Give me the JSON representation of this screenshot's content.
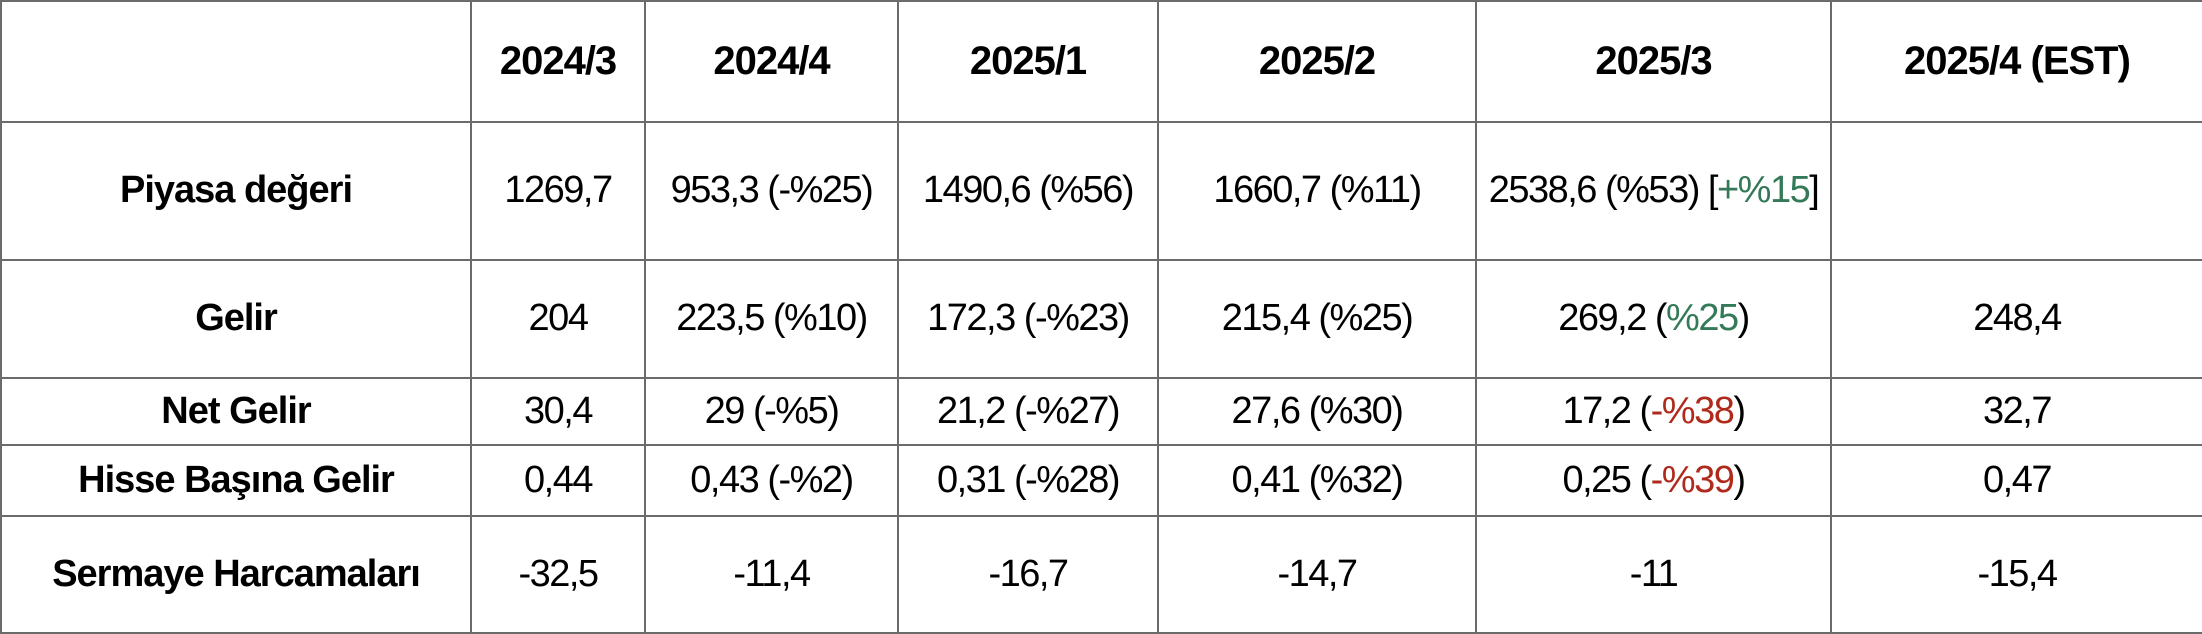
{
  "colors": {
    "green": "#347a58",
    "red": "#b02a1c",
    "text": "#000000",
    "border": "#6b6b6b",
    "background": "#ffffff"
  },
  "table": {
    "columns": [
      "",
      "2024/3",
      "2024/4",
      "2025/1",
      "2025/2",
      "2025/3",
      "2025/4 (EST)"
    ],
    "rows": [
      {
        "label": "Piyasa değeri",
        "cells": [
          [
            {
              "text": "1269,7"
            }
          ],
          [
            {
              "text": "953,3 (-%25)"
            }
          ],
          [
            {
              "text": "1490,6 (%56)"
            }
          ],
          [
            {
              "text": "1660,7 (%11)"
            }
          ],
          [
            {
              "text": "2538,6 (%53) ["
            },
            {
              "text": "+%15",
              "color": "green"
            },
            {
              "text": "]"
            }
          ],
          []
        ]
      },
      {
        "label": "Gelir",
        "cells": [
          [
            {
              "text": "204"
            }
          ],
          [
            {
              "text": "223,5 (%10)"
            }
          ],
          [
            {
              "text": "172,3 (-%23)"
            }
          ],
          [
            {
              "text": "215,4 (%25)"
            }
          ],
          [
            {
              "text": "269,2 ("
            },
            {
              "text": "%25",
              "color": "green"
            },
            {
              "text": ")"
            }
          ],
          [
            {
              "text": "248,4"
            }
          ]
        ]
      },
      {
        "label": "Net Gelir",
        "cells": [
          [
            {
              "text": "30,4"
            }
          ],
          [
            {
              "text": "29 (-%5)"
            }
          ],
          [
            {
              "text": "21,2 (-%27)"
            }
          ],
          [
            {
              "text": "27,6 (%30)"
            }
          ],
          [
            {
              "text": "17,2 ("
            },
            {
              "text": "-%38",
              "color": "red"
            },
            {
              "text": ")"
            }
          ],
          [
            {
              "text": "32,7"
            }
          ]
        ]
      },
      {
        "label": "Hisse Başına Gelir",
        "cells": [
          [
            {
              "text": "0,44"
            }
          ],
          [
            {
              "text": "0,43 (-%2)"
            }
          ],
          [
            {
              "text": "0,31 (-%28)"
            }
          ],
          [
            {
              "text": "0,41 (%32)"
            }
          ],
          [
            {
              "text": "0,25 ("
            },
            {
              "text": "-%39",
              "color": "red"
            },
            {
              "text": ")"
            }
          ],
          [
            {
              "text": "0,47"
            }
          ]
        ]
      },
      {
        "label": "Sermaye Harcamaları",
        "cells": [
          [
            {
              "text": "-32,5"
            }
          ],
          [
            {
              "text": "-11,4"
            }
          ],
          [
            {
              "text": "-16,7"
            }
          ],
          [
            {
              "text": "-14,7"
            }
          ],
          [
            {
              "text": "-11"
            }
          ],
          [
            {
              "text": "-15,4"
            }
          ]
        ]
      }
    ]
  },
  "chart_data": {
    "type": "table",
    "title": "",
    "columns": [
      "2024/3",
      "2024/4",
      "2025/1",
      "2025/2",
      "2025/3",
      "2025/4 (EST)"
    ],
    "rows": [
      {
        "metric": "Piyasa değeri",
        "values": [
          1269.7,
          953.3,
          1490.6,
          1660.7,
          2538.6,
          null
        ],
        "pct_change": [
          null,
          -25,
          56,
          11,
          53,
          null
        ],
        "extra_pct_change": [
          null,
          null,
          null,
          null,
          15,
          null
        ]
      },
      {
        "metric": "Gelir",
        "values": [
          204,
          223.5,
          172.3,
          215.4,
          269.2,
          248.4
        ],
        "pct_change": [
          null,
          10,
          -23,
          25,
          25,
          null
        ]
      },
      {
        "metric": "Net Gelir",
        "values": [
          30.4,
          29,
          21.2,
          27.6,
          17.2,
          32.7
        ],
        "pct_change": [
          null,
          -5,
          -27,
          30,
          -38,
          null
        ]
      },
      {
        "metric": "Hisse Başına Gelir",
        "values": [
          0.44,
          0.43,
          0.31,
          0.41,
          0.25,
          0.47
        ],
        "pct_change": [
          null,
          -2,
          -28,
          32,
          -39,
          null
        ]
      },
      {
        "metric": "Sermaye Harcamaları",
        "values": [
          -32.5,
          -11.4,
          -16.7,
          -14.7,
          -11,
          -15.4
        ],
        "pct_change": [
          null,
          null,
          null,
          null,
          null,
          null
        ]
      }
    ]
  }
}
